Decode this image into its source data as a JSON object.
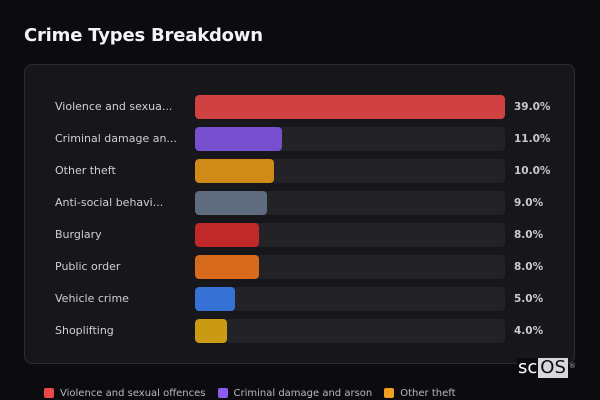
{
  "title": "Crime Types Breakdown",
  "chart_data": {
    "type": "bar",
    "orientation": "horizontal",
    "title": "Crime Types Breakdown",
    "xlabel": "",
    "ylabel": "",
    "xlim": [
      0,
      39
    ],
    "grid": false,
    "legend_position": "bottom",
    "categories": [
      "Violence and sexual offences",
      "Criminal damage and arson",
      "Other theft",
      "Anti-social behaviour",
      "Burglary",
      "Public order",
      "Vehicle crime",
      "Shoplifting"
    ],
    "display_labels": [
      "Violence and sexua...",
      "Criminal damage an...",
      "Other theft",
      "Anti-social behavi...",
      "Burglary",
      "Public order",
      "Vehicle crime",
      "Shoplifting"
    ],
    "values": [
      39.0,
      11.0,
      10.0,
      9.0,
      8.0,
      8.0,
      5.0,
      4.0
    ],
    "value_labels": [
      "39.0%",
      "11.0%",
      "10.0%",
      "9.0%",
      "8.0%",
      "8.0%",
      "5.0%",
      "4.0%"
    ],
    "colors": [
      "#d04141",
      "#7750d0",
      "#d08a18",
      "#5f6b7e",
      "#c0282a",
      "#d86a1e",
      "#3672d6",
      "#c99a12"
    ],
    "legend": [
      {
        "label": "Violence and sexual offences",
        "color": "#e84a4a"
      },
      {
        "label": "Criminal damage and arson",
        "color": "#8a5cf0"
      },
      {
        "label": "Other theft",
        "color": "#f0a020"
      }
    ]
  },
  "watermark": {
    "left": "sc",
    "right": "OS",
    "mark": "®"
  }
}
